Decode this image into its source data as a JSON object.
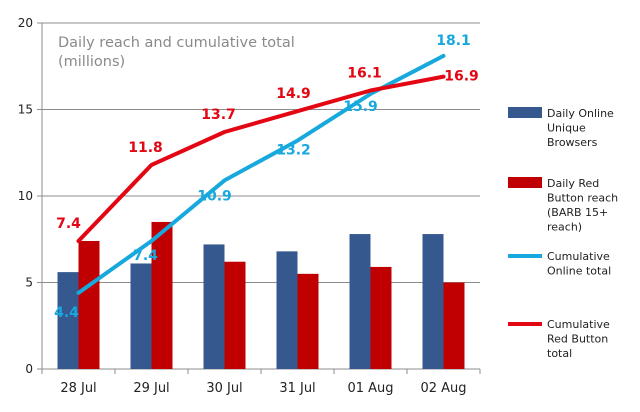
{
  "chart_data": {
    "type": "bar",
    "title_lines": [
      "Daily reach and cumulative total",
      "(millions)"
    ],
    "categories": [
      "28 Jul",
      "29 Jul",
      "30 Jul",
      "31 Jul",
      "01 Aug",
      "02 Aug"
    ],
    "ylim": [
      0,
      20
    ],
    "yticks": [
      "0",
      "5",
      "10",
      "15",
      "20"
    ],
    "grid": "horizontal",
    "legend_position": "right",
    "series": [
      {
        "name_lines": [
          "Daily Online",
          "Unique",
          "Browsers"
        ],
        "kind": "bar",
        "color": "#35598f",
        "values": [
          5.6,
          6.1,
          7.2,
          6.8,
          7.8,
          7.8
        ]
      },
      {
        "name_lines": [
          "Daily Red",
          "Button reach",
          "(BARB 15+",
          "reach)"
        ],
        "kind": "bar",
        "color": "#c00000",
        "values": [
          7.4,
          8.5,
          6.2,
          5.5,
          5.9,
          5.0
        ]
      },
      {
        "name_lines": [
          "Cumulative",
          "Online total"
        ],
        "kind": "line",
        "color": "#17a9dd",
        "values": [
          4.4,
          7.4,
          10.9,
          13.2,
          15.9,
          18.1
        ],
        "labels": [
          "4.4",
          "7.4",
          "10.9",
          "13.2",
          "15.9",
          "18.1"
        ]
      },
      {
        "name_lines": [
          "Cumulative",
          "Red Button",
          "total"
        ],
        "kind": "line",
        "color": "#e30613",
        "values": [
          7.4,
          11.8,
          13.7,
          14.9,
          16.1,
          16.9
        ],
        "labels": [
          "7.4",
          "11.8",
          "13.7",
          "14.9",
          "16.1",
          "16.9"
        ]
      }
    ]
  }
}
